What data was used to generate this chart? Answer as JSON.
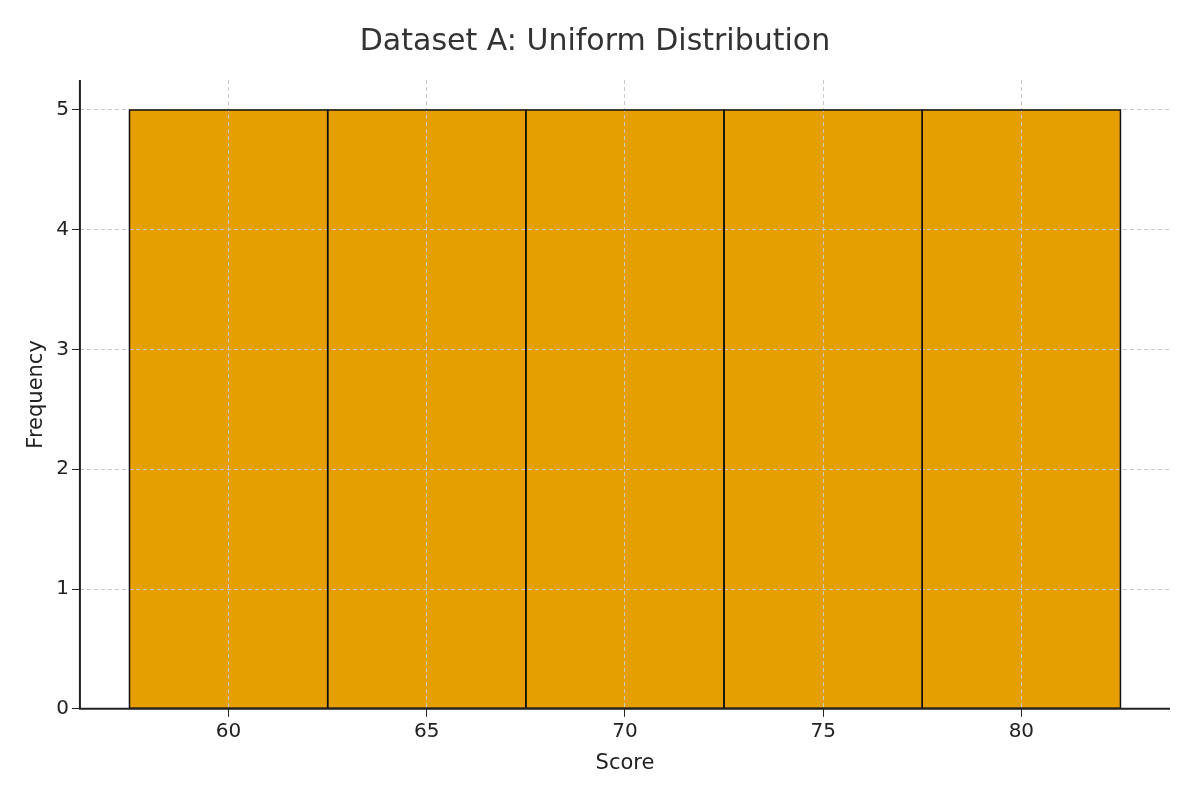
{
  "chart_data": {
    "type": "histogram",
    "title": "Dataset A: Uniform Distribution",
    "xlabel": "Score",
    "ylabel": "Frequency",
    "bins": [
      57.5,
      62.5,
      67.5,
      72.5,
      77.5,
      82.5
    ],
    "values": [
      5,
      5,
      5,
      5,
      5
    ],
    "color": "#e69f00",
    "xlim": [
      56.25,
      83.75
    ],
    "xticks": [
      60,
      65,
      70,
      75,
      80
    ],
    "ylim": [
      0,
      5.25
    ],
    "yticks": [
      0,
      1,
      2,
      3,
      4,
      5
    ],
    "grid": true
  }
}
